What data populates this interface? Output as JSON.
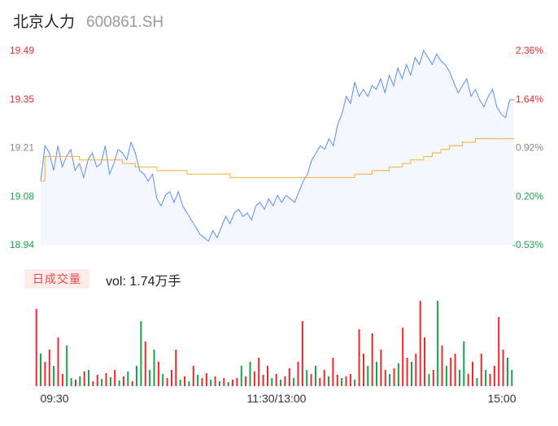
{
  "header": {
    "name": "北京人力",
    "code": "600861.SH"
  },
  "volume": {
    "tab_label": "日成交量",
    "vol_text": "vol: 1.74万手"
  },
  "colors": {
    "up": "#f0292d",
    "down": "#1aa34a",
    "price_line": "#5b8def",
    "avg_line": "#f5b030",
    "neutral": "#888888"
  },
  "chart_data": {
    "type": "line",
    "ylim": [
      18.94,
      19.49
    ],
    "price_ticks": [
      "19.49",
      "19.35",
      "19.21",
      "19.08",
      "18.94"
    ],
    "pct_ticks": [
      "2.36%",
      "1.64%",
      "0.92%",
      "0.20%",
      "-0.53%"
    ],
    "x_ticks": [
      "09:30",
      "11:30/13:00",
      "15:00"
    ],
    "series": [
      {
        "values": [
          19.12,
          19.22,
          19.2,
          19.15,
          19.22,
          19.16,
          19.19,
          19.21,
          19.15,
          19.17,
          19.13,
          19.18,
          19.2,
          19.16,
          19.17,
          19.22,
          19.14,
          19.17,
          19.21,
          19.2,
          19.18,
          19.23,
          19.2,
          19.15,
          19.14,
          19.12,
          19.14,
          19.07,
          19.05,
          19.08,
          19.09,
          19.06,
          19.09,
          19.05,
          19.03,
          19.01,
          18.99,
          18.97,
          18.96,
          18.95,
          18.98,
          18.96,
          18.99,
          19.02,
          19.0,
          19.03,
          19.04,
          19.02,
          19.03,
          19.01,
          19.05,
          19.06,
          19.04,
          19.07,
          19.05,
          19.08,
          19.06,
          19.08,
          19.07,
          19.06,
          19.09,
          19.12,
          19.14,
          19.18,
          19.2,
          19.22,
          19.21,
          19.24,
          19.22,
          19.28,
          19.31,
          19.36,
          19.34,
          19.4,
          19.36,
          19.38,
          19.36,
          19.39,
          19.38,
          19.41,
          19.37,
          19.42,
          19.39,
          19.44,
          19.41,
          19.45,
          19.42,
          19.47,
          19.45,
          19.49,
          19.47,
          19.45,
          19.48,
          19.46,
          19.45,
          19.43,
          19.4,
          19.37,
          19.39,
          19.41,
          19.36,
          19.38,
          19.35,
          19.33,
          19.36,
          19.38,
          19.33,
          19.31,
          19.3,
          19.35,
          19.35
        ]
      },
      {
        "values": [
          19.12,
          19.19,
          19.19,
          19.19,
          19.19,
          19.19,
          19.19,
          19.19,
          19.19,
          19.18,
          19.18,
          19.18,
          19.18,
          19.18,
          19.18,
          19.18,
          19.18,
          19.18,
          19.18,
          19.17,
          19.17,
          19.17,
          19.16,
          19.16,
          19.16,
          19.16,
          19.16,
          19.15,
          19.15,
          19.15,
          19.15,
          19.15,
          19.15,
          19.15,
          19.14,
          19.14,
          19.14,
          19.14,
          19.14,
          19.14,
          19.14,
          19.14,
          19.14,
          19.14,
          19.13,
          19.13,
          19.13,
          19.13,
          19.13,
          19.13,
          19.13,
          19.13,
          19.13,
          19.13,
          19.13,
          19.13,
          19.13,
          19.13,
          19.13,
          19.13,
          19.13,
          19.13,
          19.13,
          19.13,
          19.13,
          19.13,
          19.13,
          19.13,
          19.13,
          19.13,
          19.13,
          19.13,
          19.13,
          19.14,
          19.14,
          19.14,
          19.14,
          19.15,
          19.15,
          19.15,
          19.15,
          19.16,
          19.16,
          19.16,
          19.17,
          19.17,
          19.18,
          19.18,
          19.18,
          19.19,
          19.19,
          19.2,
          19.2,
          19.21,
          19.21,
          19.22,
          19.22,
          19.22,
          19.23,
          19.23,
          19.23,
          19.24,
          19.24,
          19.24,
          19.24,
          19.24,
          19.24,
          19.24,
          19.24,
          19.24,
          19.24
        ]
      }
    ],
    "volumes": [
      {
        "v": 95,
        "d": "up"
      },
      {
        "v": 40,
        "d": "down"
      },
      {
        "v": 30,
        "d": "up"
      },
      {
        "v": 45,
        "d": "up"
      },
      {
        "v": 25,
        "d": "down"
      },
      {
        "v": 60,
        "d": "up"
      },
      {
        "v": 15,
        "d": "up"
      },
      {
        "v": 50,
        "d": "down"
      },
      {
        "v": 10,
        "d": "down"
      },
      {
        "v": 8,
        "d": "up"
      },
      {
        "v": 12,
        "d": "down"
      },
      {
        "v": 18,
        "d": "up"
      },
      {
        "v": 20,
        "d": "down"
      },
      {
        "v": 6,
        "d": "up"
      },
      {
        "v": 14,
        "d": "up"
      },
      {
        "v": 9,
        "d": "down"
      },
      {
        "v": 16,
        "d": "up"
      },
      {
        "v": 11,
        "d": "down"
      },
      {
        "v": 20,
        "d": "up"
      },
      {
        "v": 7,
        "d": "down"
      },
      {
        "v": 12,
        "d": "up"
      },
      {
        "v": 18,
        "d": "down"
      },
      {
        "v": 6,
        "d": "up"
      },
      {
        "v": 25,
        "d": "down"
      },
      {
        "v": 80,
        "d": "down"
      },
      {
        "v": 55,
        "d": "up"
      },
      {
        "v": 20,
        "d": "down"
      },
      {
        "v": 45,
        "d": "down"
      },
      {
        "v": 30,
        "d": "up"
      },
      {
        "v": 15,
        "d": "down"
      },
      {
        "v": 10,
        "d": "up"
      },
      {
        "v": 20,
        "d": "up"
      },
      {
        "v": 45,
        "d": "up"
      },
      {
        "v": 8,
        "d": "down"
      },
      {
        "v": 12,
        "d": "up"
      },
      {
        "v": 6,
        "d": "down"
      },
      {
        "v": 25,
        "d": "up"
      },
      {
        "v": 14,
        "d": "down"
      },
      {
        "v": 10,
        "d": "up"
      },
      {
        "v": 16,
        "d": "up"
      },
      {
        "v": 8,
        "d": "down"
      },
      {
        "v": 12,
        "d": "up"
      },
      {
        "v": 6,
        "d": "down"
      },
      {
        "v": 10,
        "d": "up"
      },
      {
        "v": 5,
        "d": "down"
      },
      {
        "v": 8,
        "d": "up"
      },
      {
        "v": 10,
        "d": "up"
      },
      {
        "v": 25,
        "d": "down"
      },
      {
        "v": 12,
        "d": "up"
      },
      {
        "v": 30,
        "d": "down"
      },
      {
        "v": 18,
        "d": "up"
      },
      {
        "v": 35,
        "d": "up"
      },
      {
        "v": 14,
        "d": "up"
      },
      {
        "v": 25,
        "d": "up"
      },
      {
        "v": 10,
        "d": "down"
      },
      {
        "v": 15,
        "d": "up"
      },
      {
        "v": 8,
        "d": "down"
      },
      {
        "v": 12,
        "d": "up"
      },
      {
        "v": 22,
        "d": "up"
      },
      {
        "v": 10,
        "d": "down"
      },
      {
        "v": 30,
        "d": "up"
      },
      {
        "v": 80,
        "d": "up"
      },
      {
        "v": 20,
        "d": "down"
      },
      {
        "v": 15,
        "d": "up"
      },
      {
        "v": 25,
        "d": "down"
      },
      {
        "v": 10,
        "d": "up"
      },
      {
        "v": 20,
        "d": "up"
      },
      {
        "v": 12,
        "d": "down"
      },
      {
        "v": 35,
        "d": "up"
      },
      {
        "v": 14,
        "d": "up"
      },
      {
        "v": 10,
        "d": "down"
      },
      {
        "v": 12,
        "d": "up"
      },
      {
        "v": 15,
        "d": "up"
      },
      {
        "v": 8,
        "d": "down"
      },
      {
        "v": 70,
        "d": "up"
      },
      {
        "v": 40,
        "d": "up"
      },
      {
        "v": 25,
        "d": "down"
      },
      {
        "v": 65,
        "d": "up"
      },
      {
        "v": 30,
        "d": "down"
      },
      {
        "v": 45,
        "d": "up"
      },
      {
        "v": 20,
        "d": "up"
      },
      {
        "v": 15,
        "d": "down"
      },
      {
        "v": 22,
        "d": "up"
      },
      {
        "v": 28,
        "d": "down"
      },
      {
        "v": 72,
        "d": "up"
      },
      {
        "v": 35,
        "d": "up"
      },
      {
        "v": 30,
        "d": "down"
      },
      {
        "v": 40,
        "d": "up"
      },
      {
        "v": 105,
        "d": "up"
      },
      {
        "v": 60,
        "d": "up"
      },
      {
        "v": 15,
        "d": "down"
      },
      {
        "v": 20,
        "d": "up"
      },
      {
        "v": 105,
        "d": "down"
      },
      {
        "v": 50,
        "d": "up"
      },
      {
        "v": 25,
        "d": "down"
      },
      {
        "v": 35,
        "d": "up"
      },
      {
        "v": 40,
        "d": "up"
      },
      {
        "v": 20,
        "d": "down"
      },
      {
        "v": 55,
        "d": "down"
      },
      {
        "v": 15,
        "d": "up"
      },
      {
        "v": 30,
        "d": "up"
      },
      {
        "v": 10,
        "d": "down"
      },
      {
        "v": 40,
        "d": "up"
      },
      {
        "v": 20,
        "d": "down"
      },
      {
        "v": 15,
        "d": "up"
      },
      {
        "v": 25,
        "d": "up"
      },
      {
        "v": 85,
        "d": "up"
      },
      {
        "v": 45,
        "d": "up"
      },
      {
        "v": 35,
        "d": "down"
      },
      {
        "v": 20,
        "d": "down"
      }
    ]
  }
}
